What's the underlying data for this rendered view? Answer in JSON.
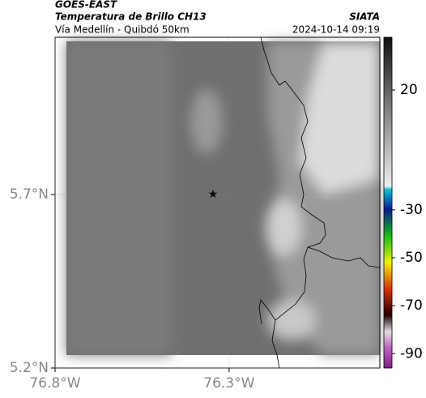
{
  "header": {
    "source": "GOES-EAST",
    "title": "Temperatura de Brillo CH13",
    "subtitle": "Vía Medellín - Quibdó 50km",
    "credit": "SIATA",
    "datetime": "2024-10-14 09:19"
  },
  "map": {
    "xlim": [
      -76.8,
      -75.867
    ],
    "ylim": [
      5.2,
      6.153
    ],
    "xticks": [
      {
        "value": -76.8,
        "label": "76.8°W"
      },
      {
        "value": -76.3,
        "label": "76.3°W"
      }
    ],
    "yticks": [
      {
        "value": 5.7,
        "label": "5.7°N"
      },
      {
        "value": 5.2,
        "label": "5.2°N"
      }
    ]
  },
  "colorbar": {
    "lim": [
      -96,
      42
    ],
    "ticks": [
      20,
      -30,
      -50,
      -70,
      -90
    ]
  }
}
